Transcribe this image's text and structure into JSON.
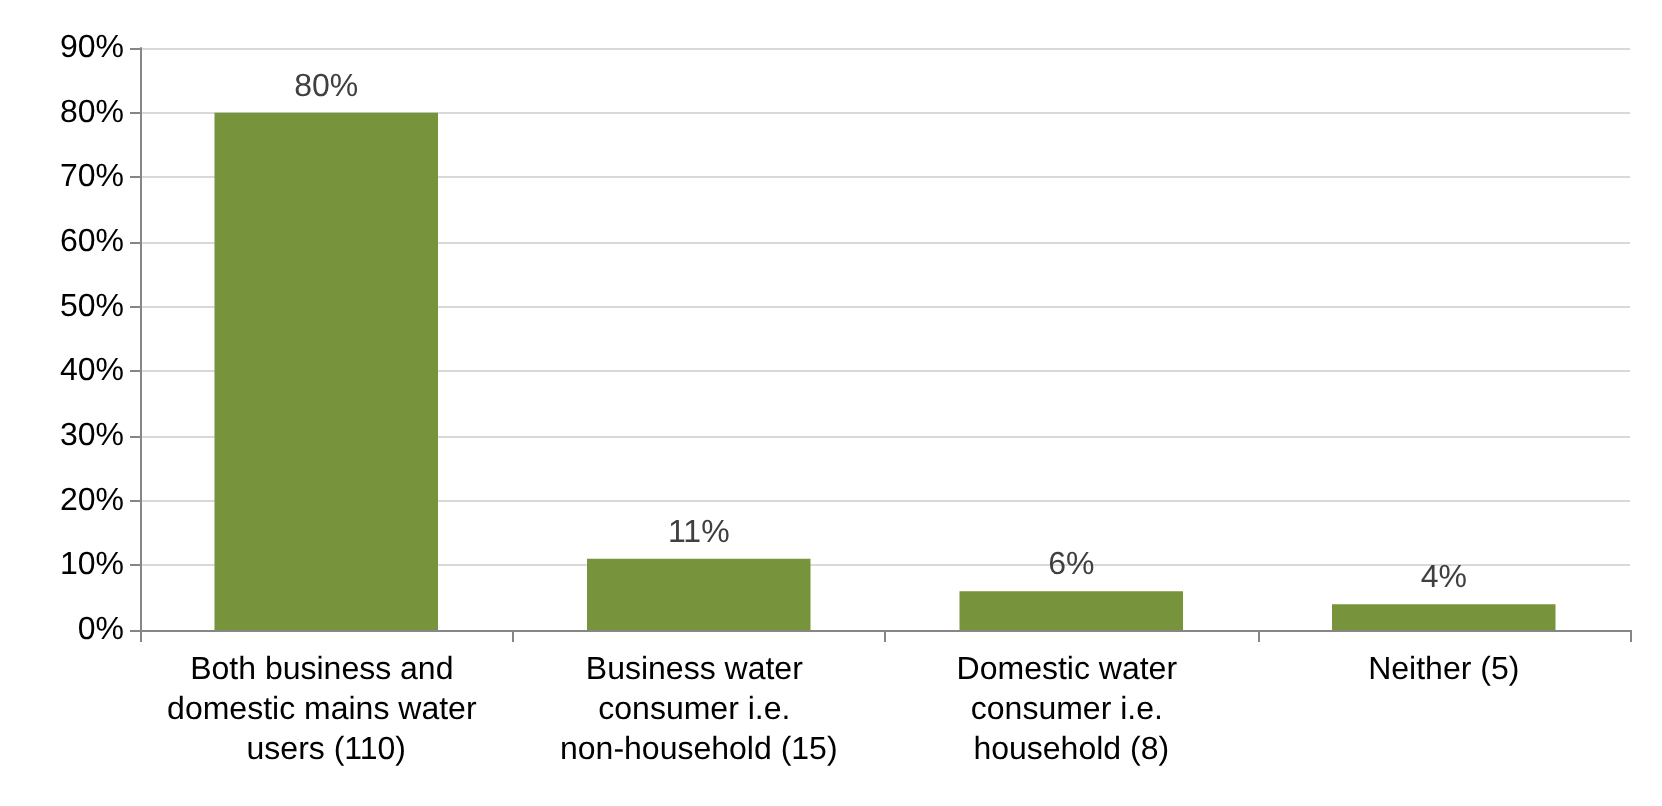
{
  "chart_data": {
    "type": "bar",
    "categories": [
      "Both business and domestic mains water users (110)",
      "Business water consumer i.e. non-household (15)",
      "Domestic water consumer i.e. household (8)",
      "Neither (5)"
    ],
    "values": [
      80,
      11,
      6,
      4
    ],
    "value_labels": [
      "80%",
      "11%",
      "6%",
      "4%"
    ],
    "color": "#77933c",
    "ylim": [
      0,
      90
    ],
    "yticks": [
      {
        "value": 0,
        "label": "0%"
      },
      {
        "value": 10,
        "label": "10%"
      },
      {
        "value": 20,
        "label": "20%"
      },
      {
        "value": 30,
        "label": "30%"
      },
      {
        "value": 40,
        "label": "40%"
      },
      {
        "value": 50,
        "label": "50%"
      },
      {
        "value": 60,
        "label": "60%"
      },
      {
        "value": 70,
        "label": "70%"
      },
      {
        "value": 80,
        "label": "80%"
      },
      {
        "value": 90,
        "label": "90%"
      }
    ],
    "grid": "y"
  }
}
